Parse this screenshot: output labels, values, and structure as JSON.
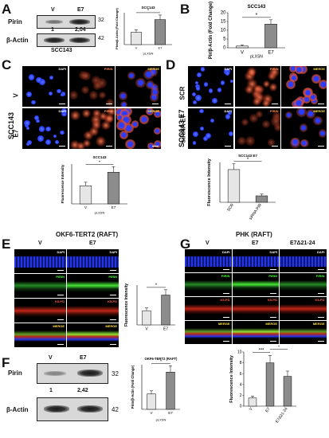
{
  "panels": {
    "A": {
      "letter": "A",
      "blot": {
        "lanes": [
          "V",
          "E7"
        ],
        "rows": [
          {
            "label": "Pirin",
            "kda": "32"
          },
          {
            "label": "β-Actin",
            "kda": "42"
          }
        ],
        "quant": [
          "1",
          "2,04"
        ],
        "cell_line": "SCC143"
      },
      "chart_data": {
        "type": "bar",
        "title": "SCC143",
        "categories": [
          "V",
          "E7"
        ],
        "values": [
          1,
          2.04
        ],
        "ylabel": "Pirin/β-Actin (Fold Change)",
        "xlabel": "pLXSN",
        "significance": "*"
      }
    },
    "B": {
      "letter": "B",
      "chart_data": {
        "type": "bar",
        "title": "SCC143",
        "categories": [
          "V",
          "E7"
        ],
        "values": [
          1,
          13.5
        ],
        "ylim": [
          0,
          20
        ],
        "yticks": [
          "0",
          "5",
          "10",
          "15",
          "20"
        ],
        "ylabel": "Pir/β-Actin (Fold Change)",
        "xlabel": "pLXSN",
        "significance": "*"
      }
    },
    "C": {
      "letter": "C",
      "side_label": "SCC143",
      "rows": [
        "V",
        "E7"
      ],
      "channels": [
        "DAPI",
        "PIRIN",
        "MERGE"
      ],
      "chart_data": {
        "type": "bar",
        "title": "SCC143",
        "categories": [
          "V",
          "E7"
        ],
        "values": [
          1.0,
          1.75
        ],
        "ylabel": "Fluorescence Intensity",
        "xlabel": "pLXSN",
        "significance": "*"
      }
    },
    "D": {
      "letter": "D",
      "side_label": "SCC143 E7",
      "rows": [
        "SCR",
        "siRNA E7"
      ],
      "channels": [
        "DAPI",
        "PIRIN",
        "MERGE"
      ],
      "chart_data": {
        "type": "bar",
        "title": "SCC143 E7",
        "categories": [
          "SCR",
          "siRNA PIR"
        ],
        "values": [
          2.3,
          0.45
        ],
        "ylabel": "Fluorescence Intensity",
        "significance": "*"
      }
    },
    "E": {
      "letter": "E",
      "title": "OKF6-TERT2 (RAFT)",
      "cols": [
        "V",
        "E7"
      ],
      "channels": [
        "DAPI",
        "PIRIN",
        "K5-PD",
        "MERGE"
      ],
      "chart_data": {
        "type": "bar",
        "categories": [
          "V",
          "E7"
        ],
        "values": [
          1.0,
          2.1
        ],
        "ylabel": "Fluorescence Intensity",
        "significance": "*"
      }
    },
    "F": {
      "letter": "F",
      "blot": {
        "lanes": [
          "V",
          "E7"
        ],
        "rows": [
          {
            "label": "Pirin",
            "kda": "32"
          },
          {
            "label": "β-Actin",
            "kda": "42"
          }
        ],
        "quant": [
          "1",
          "2,42"
        ]
      },
      "chart_data": {
        "type": "bar",
        "title": "OKF6-TERT2 (RAFT)",
        "categories": [
          "V",
          "E7"
        ],
        "values": [
          1,
          2.42
        ],
        "ylabel": "Pirin/β-Actin (Fold Change)",
        "xlabel": "pLXSN",
        "significance": "*"
      }
    },
    "G": {
      "letter": "G",
      "title": "PHK (RAFT)",
      "cols": [
        "V",
        "E7",
        "E7Δ21-24"
      ],
      "channels": [
        "DAPI",
        "PIRIN",
        "K5-PD",
        "MERGE"
      ],
      "chart_data": {
        "type": "bar",
        "categories": [
          "V",
          "E7",
          "E7Δ21-24"
        ],
        "values": [
          1.5,
          8.0,
          5.5
        ],
        "ylim": [
          0,
          10
        ],
        "yticks": [
          "0",
          "2",
          "4",
          "6",
          "8",
          "10"
        ],
        "ylabel": "Fluorescence Intensity",
        "significance": [
          "***",
          "*"
        ]
      }
    }
  },
  "colors": {
    "dapi": "#2a3cff",
    "pirin": "#ff4b2a",
    "green": "#4cff3a",
    "red": "#d22a1a",
    "bar_v": "#e6e6e6",
    "bar_e7": "#8c8c8c"
  }
}
